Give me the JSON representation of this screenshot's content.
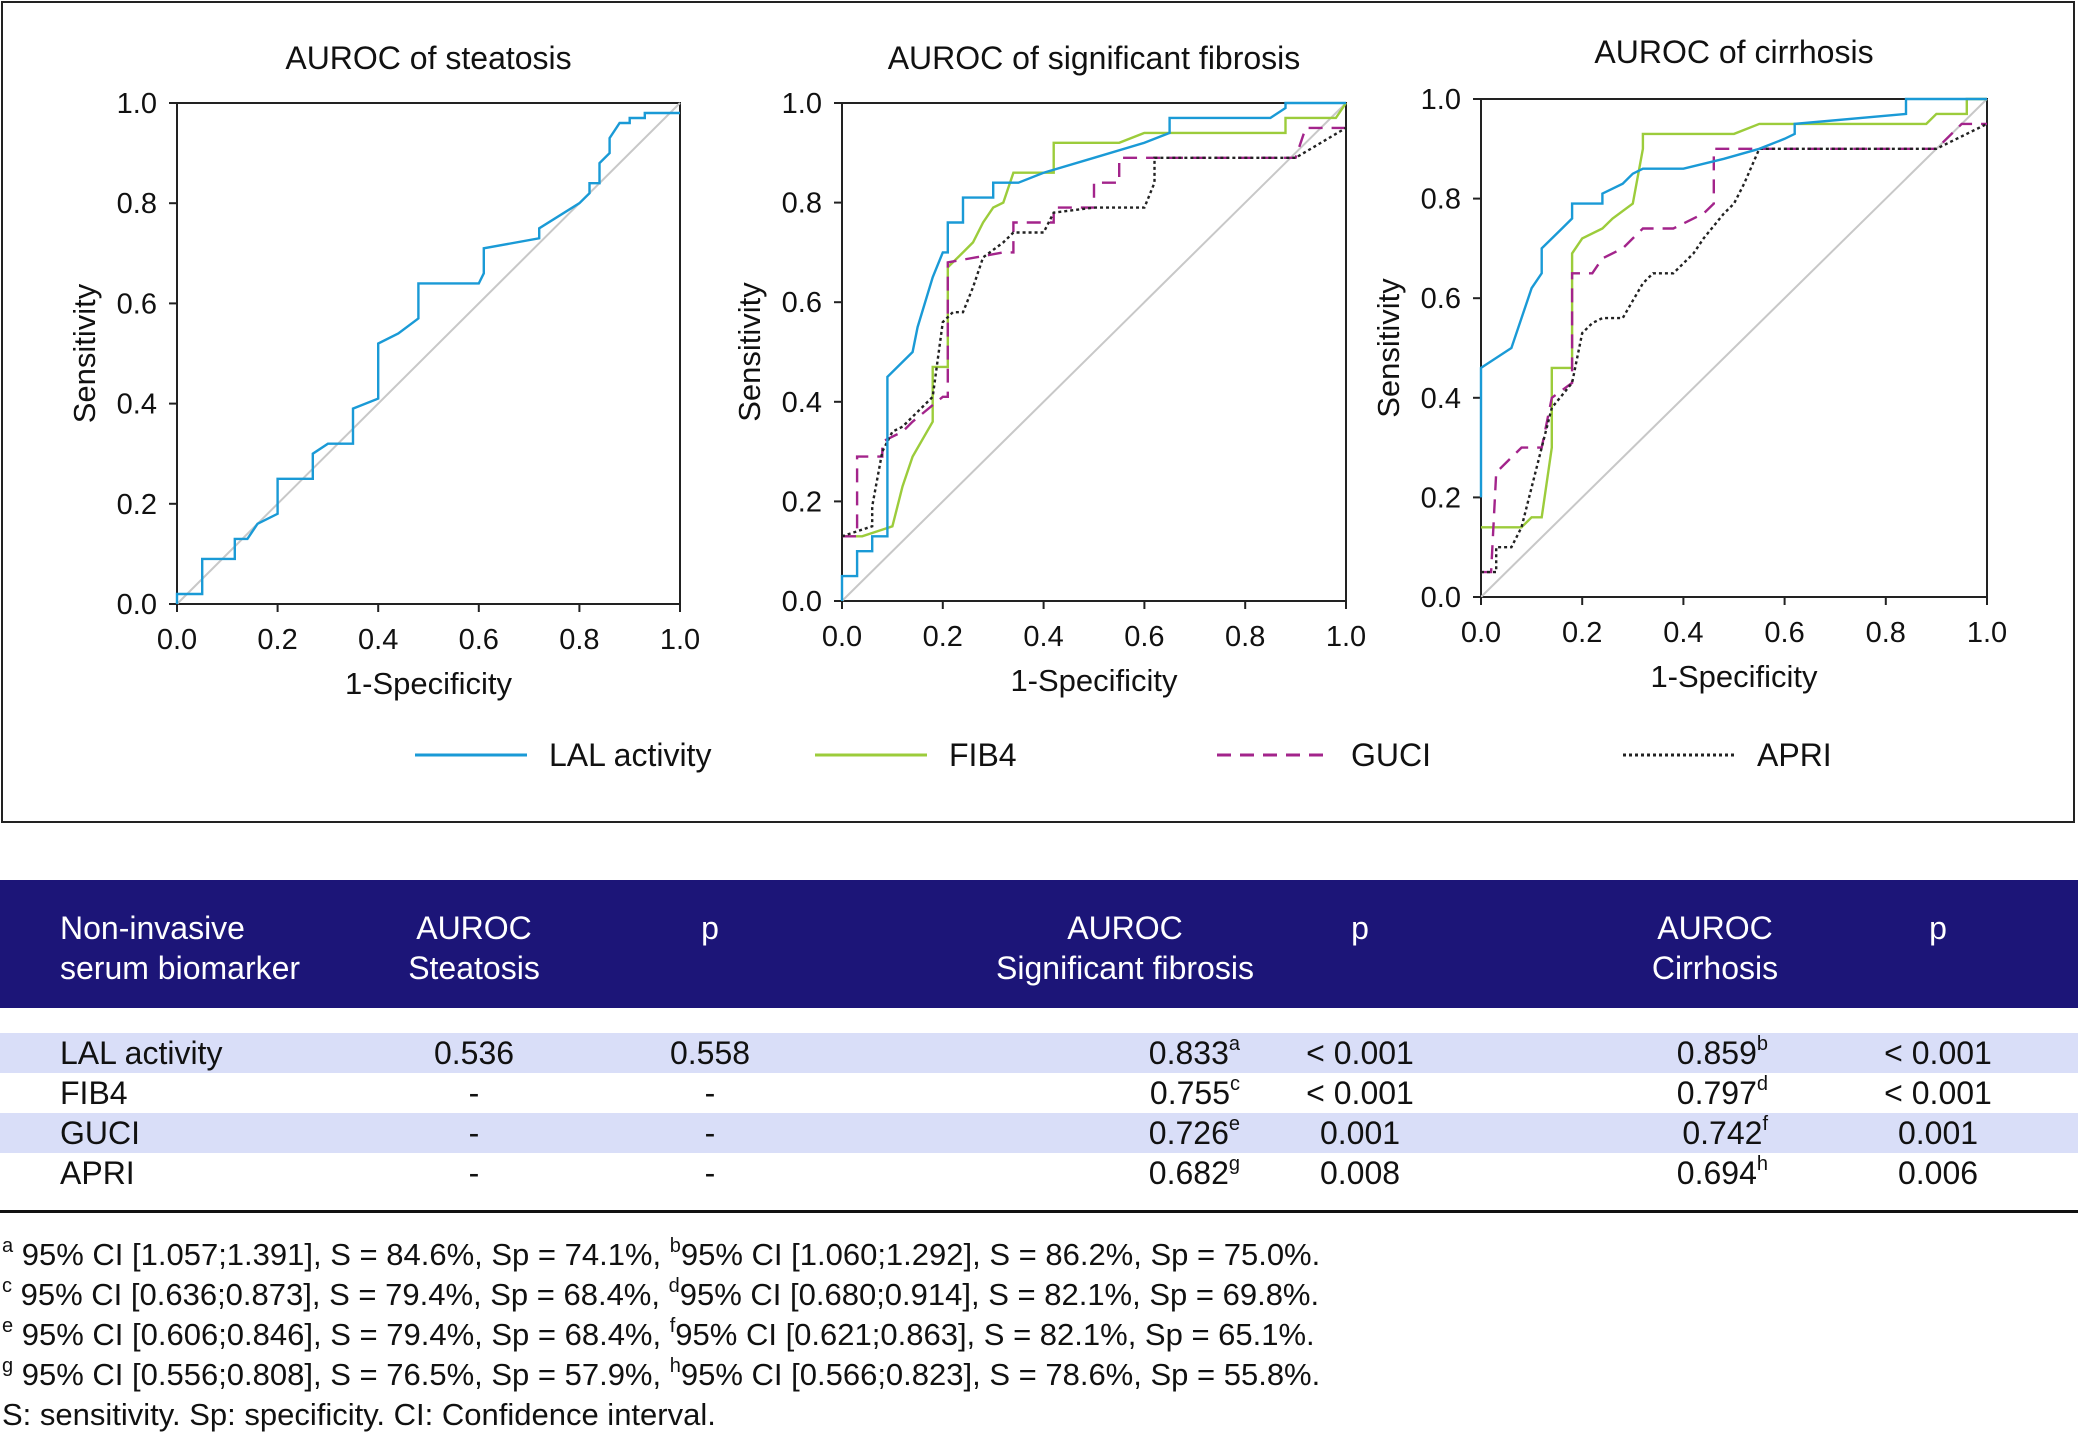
{
  "charts": {
    "x_label": "1-Specificity",
    "y_label": "Sensitivity",
    "ticks": [
      "0.0",
      "0.2",
      "0.4",
      "0.6",
      "0.8",
      "1.0"
    ]
  },
  "legend": [
    {
      "name": "LAL activity",
      "color": "#1a9ad6",
      "dash": ""
    },
    {
      "name": "FIB4",
      "color": "#9ccc3b",
      "dash": ""
    },
    {
      "name": "GUCI",
      "color": "#a3248b",
      "dash": "14 9"
    },
    {
      "name": "APRI",
      "color": "#222222",
      "dash": "3 3"
    }
  ],
  "chart_data": [
    {
      "type": "line",
      "title": "AUROC of steatosis",
      "xlabel": "1-Specificity",
      "ylabel": "Sensitivity",
      "xlim": [
        0,
        1
      ],
      "ylim": [
        0,
        1
      ],
      "reference_line": "diagonal",
      "series": [
        {
          "name": "LAL activity",
          "x": [
            0,
            0,
            0.05,
            0.05,
            0.115,
            0.115,
            0.14,
            0.16,
            0.2,
            0.2,
            0.27,
            0.27,
            0.3,
            0.35,
            0.35,
            0.4,
            0.4,
            0.44,
            0.48,
            0.48,
            0.6,
            0.61,
            0.61,
            0.72,
            0.72,
            0.8,
            0.82,
            0.82,
            0.84,
            0.84,
            0.86,
            0.86,
            0.88,
            0.9,
            0.9,
            0.93,
            0.93,
            1.0
          ],
          "y": [
            0,
            0.02,
            0.02,
            0.09,
            0.09,
            0.13,
            0.13,
            0.16,
            0.18,
            0.25,
            0.25,
            0.3,
            0.32,
            0.32,
            0.39,
            0.41,
            0.52,
            0.54,
            0.57,
            0.64,
            0.64,
            0.66,
            0.71,
            0.73,
            0.75,
            0.8,
            0.82,
            0.84,
            0.84,
            0.88,
            0.9,
            0.93,
            0.96,
            0.96,
            0.97,
            0.97,
            0.98,
            0.98
          ]
        }
      ]
    },
    {
      "type": "line",
      "title": "AUROC of significant fibrosis",
      "xlabel": "1-Specificity",
      "ylabel": "Sensitivity",
      "xlim": [
        0,
        1
      ],
      "ylim": [
        0,
        1
      ],
      "reference_line": "diagonal",
      "series": [
        {
          "name": "LAL activity",
          "x": [
            0,
            0,
            0.03,
            0.03,
            0.06,
            0.06,
            0.09,
            0.09,
            0.14,
            0.15,
            0.18,
            0.2,
            0.21,
            0.21,
            0.24,
            0.24,
            0.3,
            0.3,
            0.35,
            0.4,
            0.5,
            0.6,
            0.65,
            0.65,
            0.85,
            0.88,
            0.88,
            1.0
          ],
          "y": [
            0,
            0.05,
            0.05,
            0.1,
            0.1,
            0.13,
            0.13,
            0.45,
            0.5,
            0.55,
            0.65,
            0.7,
            0.7,
            0.76,
            0.76,
            0.81,
            0.81,
            0.84,
            0.84,
            0.86,
            0.89,
            0.92,
            0.94,
            0.97,
            0.97,
            0.99,
            1.0,
            1.0
          ]
        }
      ]
    },
    {
      "type": "line",
      "title": "AUROC of cirrhosis",
      "xlabel": "1-Specificity",
      "ylabel": "Sensitivity",
      "xlim": [
        0,
        1
      ],
      "ylim": [
        0,
        1
      ],
      "reference_line": "diagonal",
      "series": [
        {
          "name": "LAL activity",
          "x": [
            0,
            0,
            0.06,
            0.08,
            0.1,
            0.12,
            0.12,
            0.16,
            0.18,
            0.18,
            0.24,
            0.24,
            0.28,
            0.3,
            0.32,
            0.4,
            0.48,
            0.55,
            0.6,
            0.62,
            0.62,
            0.84,
            0.84,
            1.0
          ],
          "y": [
            0.2,
            0.46,
            0.5,
            0.56,
            0.62,
            0.65,
            0.7,
            0.74,
            0.76,
            0.79,
            0.79,
            0.81,
            0.83,
            0.85,
            0.86,
            0.86,
            0.88,
            0.9,
            0.92,
            0.93,
            0.95,
            0.97,
            1.0,
            1.0
          ]
        }
      ]
    }
  ],
  "table": {
    "headers": {
      "biomarker": [
        "Non-invasive",
        "serum biomarker"
      ],
      "auroc_steatosis": [
        "AUROC",
        "Steatosis"
      ],
      "p_steatosis": "p",
      "auroc_fibrosis": [
        "AUROC",
        "Significant fibrosis"
      ],
      "p_fibrosis": "p",
      "auroc_cirrhosis": [
        "AUROC",
        "Cirrhosis"
      ],
      "p_cirrhosis": "p"
    },
    "rows": [
      {
        "name": "LAL activity",
        "auroc_steatosis": "0.536",
        "p_steatosis": "0.558",
        "auroc_fibrosis": "0.833",
        "sup_fibrosis": "a",
        "p_fibrosis": "< 0.001",
        "auroc_cirrhosis": "0.859",
        "sup_cirrhosis": "b",
        "p_cirrhosis": "< 0.001"
      },
      {
        "name": "FIB4",
        "auroc_steatosis": "-",
        "p_steatosis": "-",
        "auroc_fibrosis": "0.755",
        "sup_fibrosis": "c",
        "p_fibrosis": "< 0.001",
        "auroc_cirrhosis": "0.797",
        "sup_cirrhosis": "d",
        "p_cirrhosis": "< 0.001"
      },
      {
        "name": "GUCI",
        "auroc_steatosis": "-",
        "p_steatosis": "-",
        "auroc_fibrosis": "0.726",
        "sup_fibrosis": "e",
        "p_fibrosis": "0.001",
        "auroc_cirrhosis": "0.742",
        "sup_cirrhosis": "f",
        "p_cirrhosis": "0.001"
      },
      {
        "name": "APRI",
        "auroc_steatosis": "-",
        "p_steatosis": "-",
        "auroc_fibrosis": "0.682",
        "sup_fibrosis": "g",
        "p_fibrosis": "0.008",
        "auroc_cirrhosis": "0.694",
        "sup_cirrhosis": "h",
        "p_cirrhosis": "0.006"
      }
    ]
  },
  "footnotes": [
    {
      "sup1": "a",
      "text1": " 95% CI [1.057;1.391], S = 84.6%, Sp = 74.1%, ",
      "sup2": "b",
      "text2": "95% CI [1.060;1.292], S = 86.2%, Sp = 75.0%."
    },
    {
      "sup1": "c",
      "text1": " 95% CI [0.636;0.873], S = 79.4%, Sp = 68.4%, ",
      "sup2": "d",
      "text2": "95% CI [0.680;0.914], S = 82.1%, Sp = 69.8%."
    },
    {
      "sup1": "e",
      "text1": " 95% CI [0.606;0.846], S = 79.4%, Sp = 68.4%, ",
      "sup2": "f",
      "text2": "95% CI [0.621;0.863], S = 82.1%, Sp = 65.1%."
    },
    {
      "sup1": "g",
      "text1": " 95% CI [0.556;0.808], S = 76.5%, Sp = 57.9%, ",
      "sup2": "h",
      "text2": "95% CI [0.566;0.823], S = 78.6%, Sp = 55.8%."
    }
  ],
  "footnote_last": "S: sensitivity. Sp: specificity. CI: Confidence interval."
}
